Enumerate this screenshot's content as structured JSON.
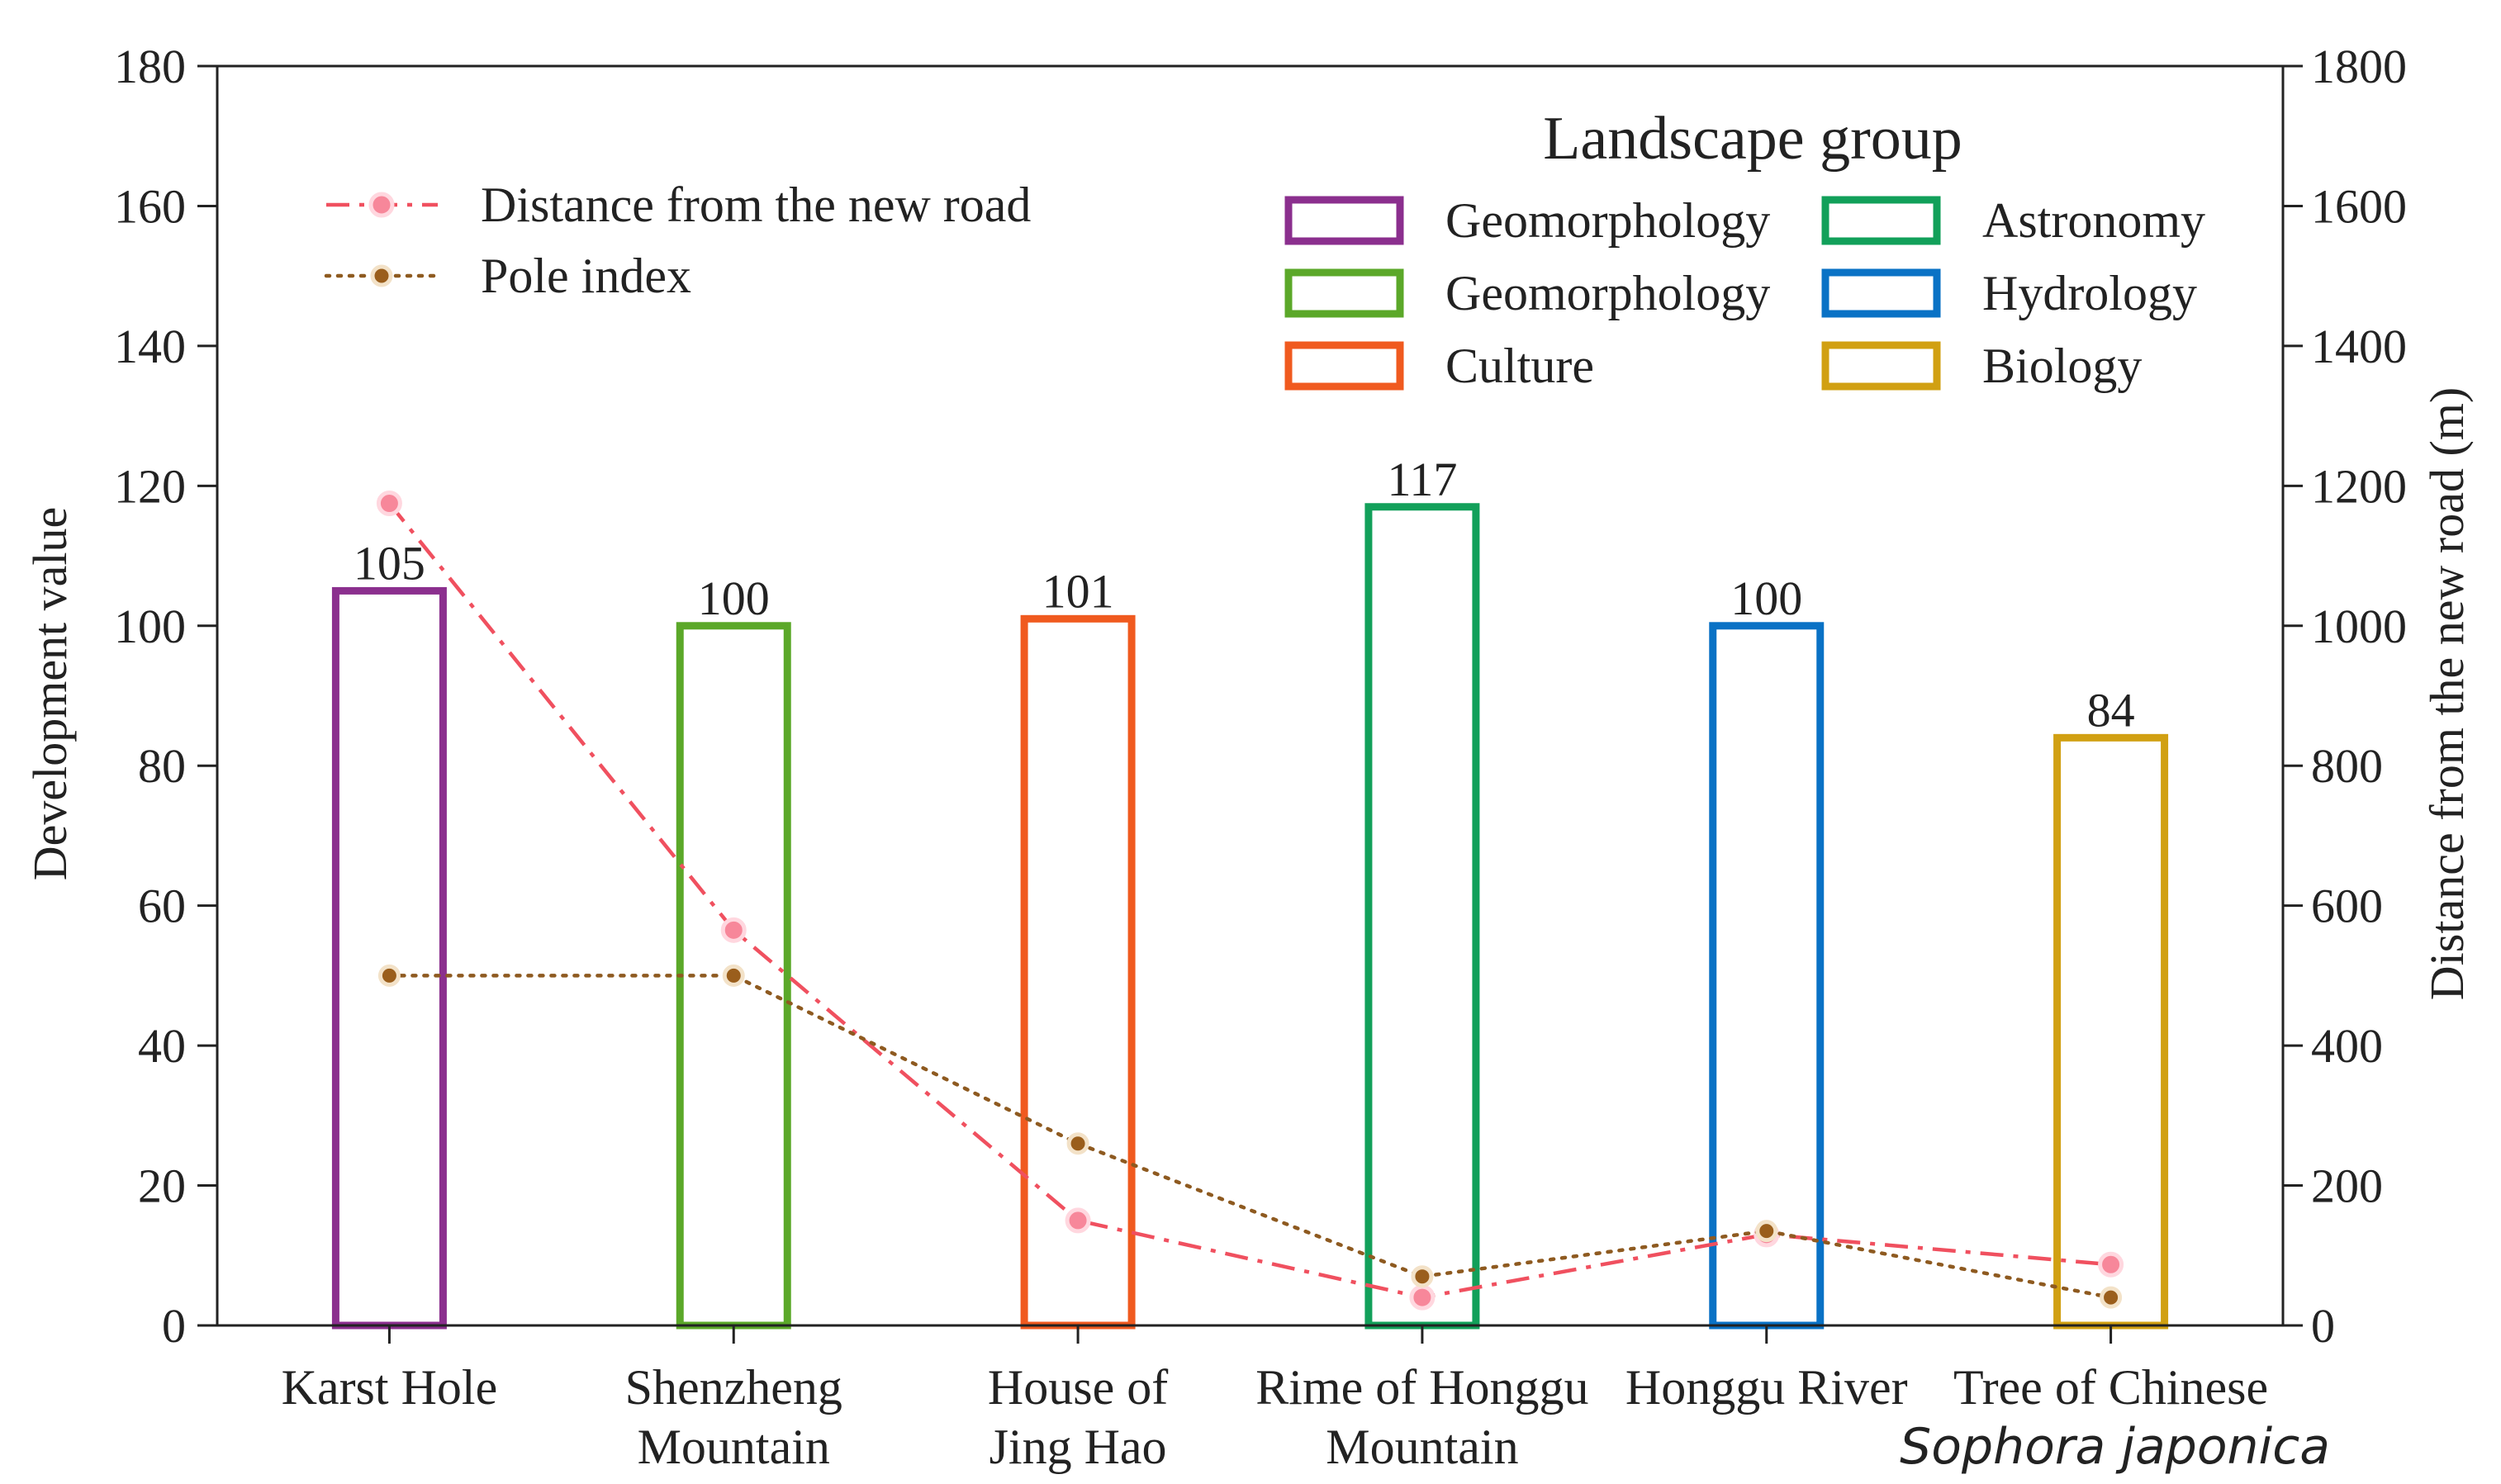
{
  "chart_data": {
    "type": "bar",
    "categories": [
      [
        "Karst Hole"
      ],
      [
        "Shenzheng",
        "Mountain"
      ],
      [
        "House of",
        "Jing Hao"
      ],
      [
        "Rime of Honggu",
        "Mountain"
      ],
      [
        "Honggu River"
      ],
      [
        "Tree of Chinese",
        "Sophora japonica"
      ]
    ],
    "ylabel": "Development value",
    "y2label": "Distance from the new road (m)",
    "ylim": [
      0,
      180
    ],
    "y2lim": [
      0,
      1800
    ],
    "yticks": [
      0,
      20,
      40,
      60,
      80,
      100,
      120,
      140,
      160,
      180
    ],
    "y2ticks": [
      0,
      200,
      400,
      600,
      800,
      1000,
      1200,
      1400,
      1600,
      1800
    ],
    "bars": {
      "values": [
        105,
        100,
        101,
        117,
        100,
        84
      ],
      "labels": [
        "105",
        "100",
        "101",
        "117",
        "100",
        "84"
      ],
      "colors": [
        "#8B2F8E",
        "#5BA829",
        "#F05A1F",
        "#12A05A",
        "#0A72C5",
        "#D1A012"
      ]
    },
    "series": [
      {
        "name": "Distance from the new road",
        "axis": "right",
        "style": "dashdot",
        "color": "#F0505F",
        "marker_color": "#F7879A",
        "values": [
          1175,
          565,
          150,
          40,
          130,
          87
        ]
      },
      {
        "name": "Pole index",
        "axis": "left",
        "style": "dotted",
        "color": "#8E5A20",
        "marker_color": "#9A5E1C",
        "values": [
          50,
          50,
          26,
          7,
          13.5,
          4
        ]
      }
    ],
    "landscape_legend": {
      "title": "Landscape group",
      "entries": [
        {
          "label": "Geomorphology",
          "color": "#8B2F8E"
        },
        {
          "label": "Astronomy",
          "color": "#12A05A"
        },
        {
          "label": "Geomorphology",
          "color": "#5BA829"
        },
        {
          "label": "Hydrology",
          "color": "#0A72C5"
        },
        {
          "label": "Culture",
          "color": "#F05A1F"
        },
        {
          "label": "Biology",
          "color": "#D1A012"
        }
      ]
    },
    "legend_position": "top-left",
    "landscape_legend_position": "top-right",
    "grid": false
  }
}
